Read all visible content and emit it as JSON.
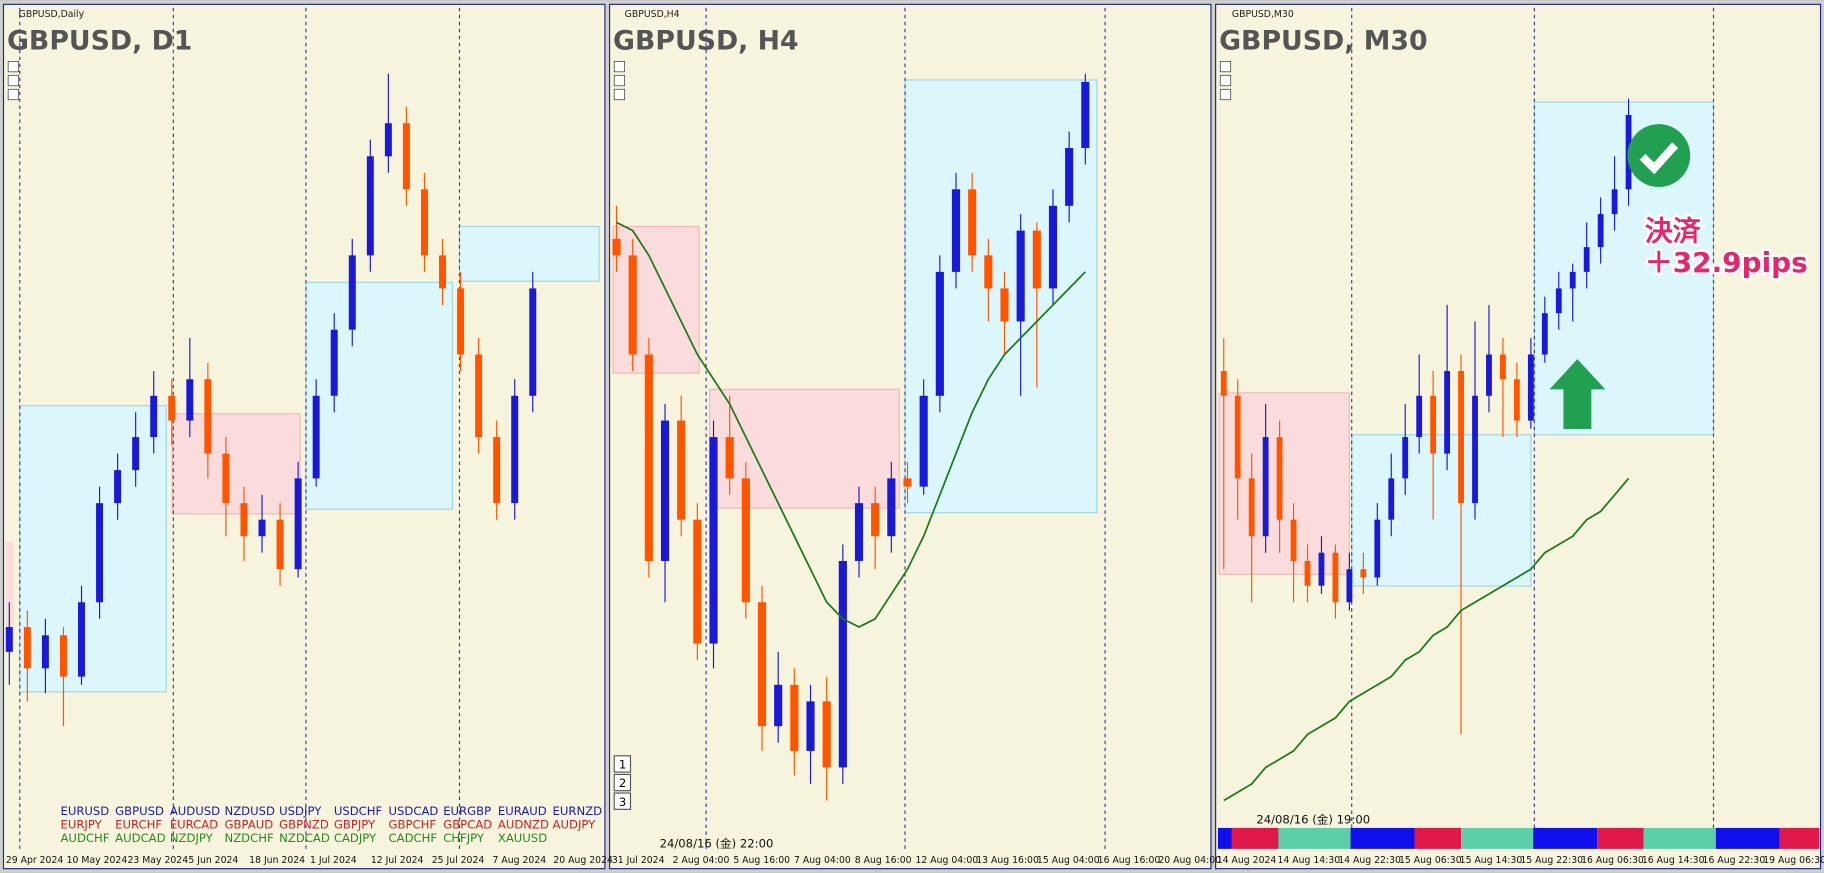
{
  "panels": [
    {
      "window_title": "GBPUSD,Daily",
      "title": "GBPUSD, D1",
      "ylim": [
        0,
        100
      ],
      "dates": [
        "29 Apr 2024",
        "10 May 2024",
        "23 May 2024",
        "5 Jun 2024",
        "18 Jun 2024",
        "1 Jul 2024",
        "12 Jul 2024",
        "25 Jul 2024",
        "7 Aug 2024",
        "20 Aug 2024"
      ],
      "candles": [
        [
          24,
          30,
          20,
          27
        ],
        [
          27,
          29,
          18,
          22
        ],
        [
          22,
          28,
          19,
          26
        ],
        [
          26,
          27,
          15,
          21
        ],
        [
          21,
          32,
          20,
          30
        ],
        [
          30,
          44,
          28,
          42
        ],
        [
          42,
          48,
          40,
          46
        ],
        [
          46,
          53,
          44,
          50
        ],
        [
          50,
          58,
          48,
          55
        ],
        [
          55,
          57,
          49,
          52
        ],
        [
          52,
          62,
          50,
          57
        ],
        [
          57,
          59,
          45,
          48
        ],
        [
          48,
          50,
          38,
          42
        ],
        [
          42,
          44,
          35,
          38
        ],
        [
          38,
          43,
          36,
          40
        ],
        [
          40,
          42,
          32,
          34
        ],
        [
          34,
          47,
          33,
          45
        ],
        [
          45,
          57,
          44,
          55
        ],
        [
          55,
          65,
          53,
          63
        ],
        [
          63,
          74,
          61,
          72
        ],
        [
          72,
          86,
          70,
          84
        ],
        [
          84,
          94,
          82,
          88
        ],
        [
          88,
          90,
          78,
          80
        ],
        [
          80,
          82,
          70,
          72
        ],
        [
          72,
          74,
          66,
          68
        ],
        [
          68,
          70,
          58,
          60
        ],
        [
          60,
          62,
          48,
          50
        ],
        [
          50,
          52,
          40,
          42
        ],
        [
          42,
          57,
          40,
          55
        ],
        [
          55,
          70,
          53,
          68
        ]
      ],
      "symbols": [
        [
          "EURUSD",
          "GBPUSD",
          "AUDUSD",
          "NZDUSD",
          "USDJPY",
          "USDCHF",
          "USDCAD",
          "EURGBP",
          "EURAUD",
          "EURNZD"
        ],
        [
          "EURJPY",
          "EURCHF",
          "EURCAD",
          "GBPAUD",
          "GBPNZD",
          "GBPJPY",
          "GBPCHF",
          "GBPCAD",
          "AUDNZD",
          "AUDJPY"
        ],
        [
          "AUDCHF",
          "AUDCAD",
          "NZDJPY",
          "NZDCHF",
          "NZDCAD",
          "CADJPY",
          "CADCHF",
          "CHFJPY",
          "XAUUSD"
        ]
      ]
    },
    {
      "window_title": "GBPUSD,H4",
      "title": "GBPUSD, H4",
      "ylim": [
        0,
        100
      ],
      "info": "24/08/16 (金) 22:00",
      "buttons": [
        "1",
        "2",
        "3"
      ],
      "dates": [
        "31 Jul 2024",
        "2 Aug 04:00",
        "5 Aug 16:00",
        "7 Aug 04:00",
        "8 Aug 16:00",
        "12 Aug 04:00",
        "13 Aug 16:00",
        "15 Aug 04:00",
        "16 Aug 16:00",
        "20 Aug 04:00"
      ],
      "candles": [
        [
          74,
          78,
          70,
          72
        ],
        [
          72,
          74,
          58,
          60
        ],
        [
          60,
          62,
          33,
          35
        ],
        [
          35,
          54,
          30,
          52
        ],
        [
          52,
          55,
          38,
          40
        ],
        [
          40,
          42,
          23,
          25
        ],
        [
          25,
          52,
          22,
          50
        ],
        [
          50,
          55,
          43,
          45
        ],
        [
          45,
          47,
          28,
          30
        ],
        [
          30,
          32,
          12,
          15
        ],
        [
          15,
          24,
          13,
          20
        ],
        [
          20,
          22,
          9,
          12
        ],
        [
          12,
          20,
          8,
          18
        ],
        [
          18,
          21,
          6,
          10
        ],
        [
          10,
          37,
          8,
          35
        ],
        [
          35,
          44,
          33,
          42
        ],
        [
          42,
          44,
          34,
          38
        ],
        [
          38,
          47,
          36,
          45
        ],
        [
          45,
          47,
          42,
          44
        ],
        [
          44,
          57,
          43,
          55
        ],
        [
          55,
          72,
          53,
          70
        ],
        [
          70,
          82,
          68,
          80
        ],
        [
          80,
          82,
          70,
          72
        ],
        [
          72,
          74,
          64,
          68
        ],
        [
          68,
          70,
          60,
          64
        ],
        [
          64,
          77,
          55,
          75
        ],
        [
          75,
          76,
          56,
          68
        ],
        [
          68,
          80,
          66,
          78
        ],
        [
          78,
          87,
          76,
          85
        ],
        [
          85,
          94,
          83,
          93
        ]
      ],
      "ma": [
        76,
        75,
        72,
        68,
        64,
        60,
        57,
        54,
        50,
        46,
        42,
        38,
        34,
        30,
        28,
        27,
        28,
        31,
        34,
        38,
        43,
        48,
        53,
        57,
        60,
        62,
        64,
        66,
        68,
        70
      ]
    },
    {
      "window_title": "GBPUSD,M30",
      "title": "GBPUSD, M30",
      "ylim": [
        0,
        100
      ],
      "info": "24/08/16 (金) 19:00",
      "annotation": [
        "決済",
        "＋32.9pips"
      ],
      "dates": [
        "14 Aug 2024",
        "14 Aug 14:30",
        "14 Aug 22:30",
        "15 Aug 06:30",
        "15 Aug 14:30",
        "15 Aug 22:30",
        "16 Aug 06:30",
        "16 Aug 14:30",
        "16 Aug 22:30",
        "19 Aug 06:30"
      ],
      "candles": [
        [
          58,
          62,
          34,
          55
        ],
        [
          55,
          57,
          40,
          45
        ],
        [
          45,
          48,
          30,
          38
        ],
        [
          38,
          54,
          36,
          50
        ],
        [
          50,
          52,
          36,
          40
        ],
        [
          40,
          42,
          30,
          35
        ],
        [
          35,
          37,
          30,
          32
        ],
        [
          32,
          38,
          31,
          36
        ],
        [
          36,
          37,
          28,
          30
        ],
        [
          30,
          36,
          29,
          34
        ],
        [
          34,
          36,
          31,
          33
        ],
        [
          33,
          42,
          32,
          40
        ],
        [
          40,
          48,
          38,
          45
        ],
        [
          45,
          54,
          43,
          50
        ],
        [
          50,
          60,
          48,
          55
        ],
        [
          55,
          58,
          40,
          48
        ],
        [
          48,
          66,
          46,
          58
        ],
        [
          58,
          60,
          14,
          42
        ],
        [
          42,
          64,
          40,
          55
        ],
        [
          55,
          66,
          53,
          60
        ],
        [
          60,
          62,
          50,
          57
        ],
        [
          57,
          59,
          50,
          52
        ],
        [
          52,
          62,
          51,
          60
        ],
        [
          60,
          67,
          59,
          65
        ],
        [
          65,
          70,
          63,
          68
        ],
        [
          68,
          71,
          64,
          70
        ],
        [
          70,
          76,
          68,
          73
        ],
        [
          73,
          79,
          71,
          77
        ],
        [
          77,
          84,
          75,
          80
        ],
        [
          80,
          91,
          78,
          89
        ]
      ],
      "ma": [
        6,
        7,
        8,
        10,
        11,
        12,
        14,
        15,
        16,
        18,
        19,
        20,
        21,
        23,
        24,
        26,
        27,
        29,
        30,
        31,
        32,
        33,
        34,
        36,
        37,
        38,
        40,
        41,
        43,
        45
      ]
    }
  ],
  "bull_color": "#1a1ad6",
  "bear_color": "#ff5500",
  "ma_color": "#1a7a1a"
}
